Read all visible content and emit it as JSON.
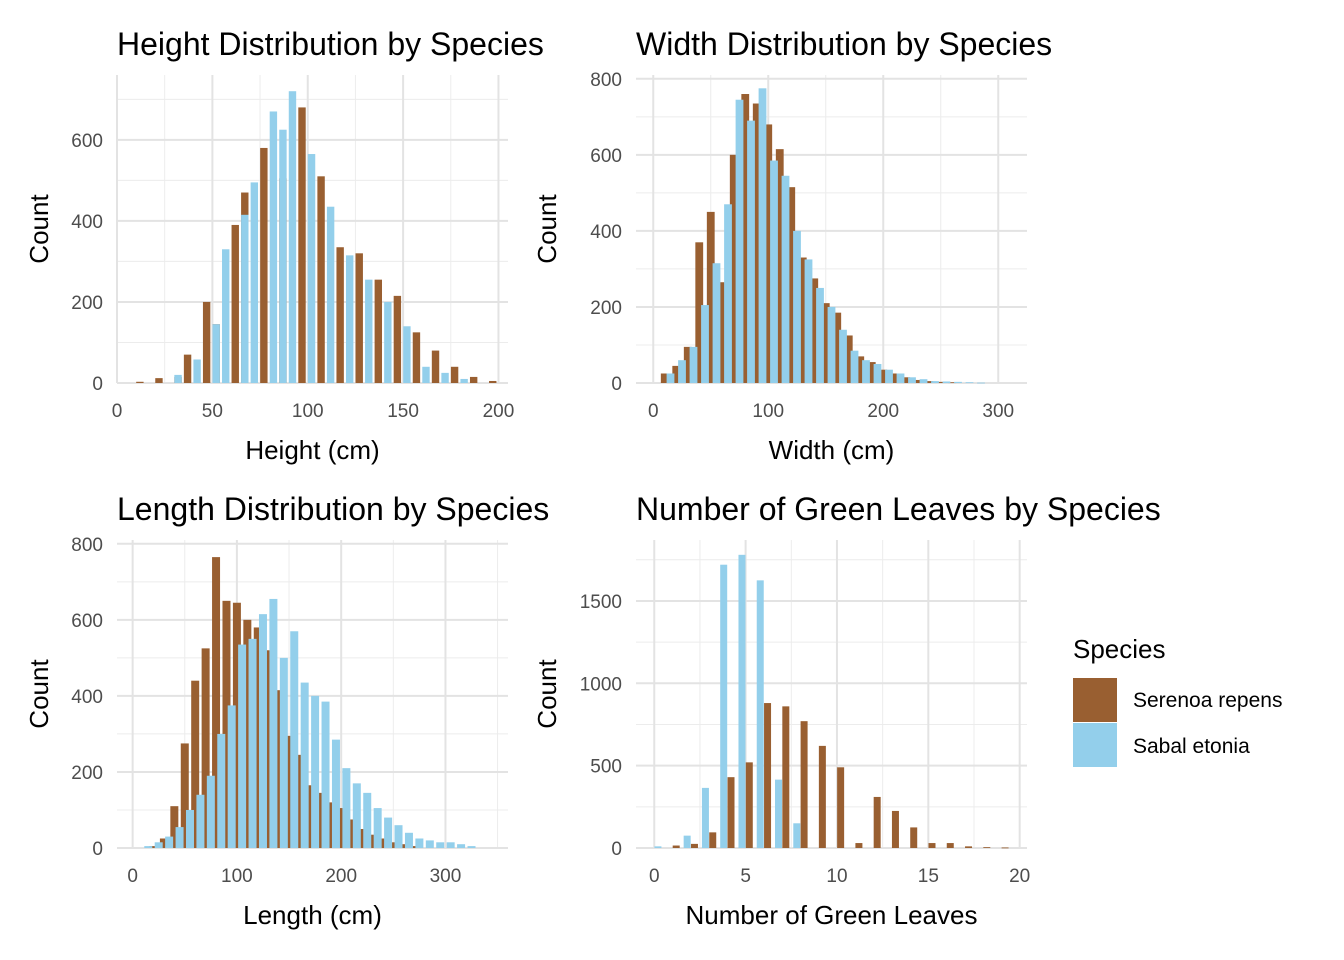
{
  "legend": {
    "title": "Species",
    "placement": "right",
    "items": [
      {
        "label": "Serenoa repens",
        "color": "#995f31"
      },
      {
        "label": "Sabal etonia",
        "color": "#93cfeb"
      }
    ]
  },
  "chart_data": [
    {
      "type": "bar",
      "title": "Height Distribution by Species",
      "xlabel": "Height (cm)",
      "ylabel": "Count",
      "xlim": [
        0,
        205
      ],
      "ylim": [
        0,
        760
      ],
      "xticks": [
        0,
        50,
        100,
        150,
        200
      ],
      "yticks": [
        0,
        200,
        400,
        600
      ],
      "grid": true,
      "series": [
        {
          "name": "Serenoa repens",
          "color": "#995f31",
          "x": [
            12,
            22,
            32,
            37,
            47,
            52,
            62,
            67,
            77,
            87,
            97,
            107,
            117,
            127,
            137,
            147,
            157,
            167,
            177,
            187,
            197
          ],
          "values": [
            3,
            12,
            15,
            70,
            200,
            145,
            390,
            470,
            580,
            505,
            680,
            510,
            335,
            320,
            255,
            215,
            125,
            80,
            40,
            15,
            5
          ]
        },
        {
          "name": "Sabal etonia",
          "color": "#93cfeb",
          "x": [
            32,
            42,
            52,
            57,
            67,
            72,
            82,
            87,
            92,
            102,
            112,
            122,
            132,
            142,
            152,
            162,
            172,
            182
          ],
          "values": [
            20,
            58,
            145,
            330,
            415,
            495,
            670,
            625,
            720,
            565,
            435,
            315,
            255,
            200,
            140,
            40,
            25,
            10
          ]
        }
      ]
    },
    {
      "type": "bar",
      "title": "Width Distribution by Species",
      "xlabel": "Width (cm)",
      "ylabel": "Count",
      "xlim": [
        -15,
        325
      ],
      "ylim": [
        0,
        810
      ],
      "xticks": [
        0,
        100,
        200,
        300
      ],
      "yticks": [
        0,
        200,
        400,
        600,
        800
      ],
      "grid": true,
      "series": [
        {
          "name": "Serenoa repens",
          "color": "#995f31",
          "x": [
            10,
            20,
            30,
            40,
            50,
            60,
            70,
            80,
            90,
            100,
            110,
            120,
            130,
            140,
            150,
            160,
            170,
            180,
            190,
            200,
            210,
            220,
            230,
            240,
            250,
            260
          ],
          "values": [
            25,
            45,
            95,
            370,
            450,
            265,
            600,
            760,
            735,
            680,
            615,
            515,
            330,
            275,
            210,
            185,
            125,
            70,
            55,
            35,
            25,
            15,
            8,
            5,
            3,
            2
          ]
        },
        {
          "name": "Sabal etonia",
          "color": "#93cfeb",
          "x": [
            15,
            25,
            35,
            45,
            55,
            65,
            75,
            85,
            95,
            105,
            115,
            125,
            135,
            145,
            155,
            165,
            175,
            185,
            195,
            205,
            215,
            225,
            235,
            245,
            255,
            265,
            275,
            285
          ],
          "values": [
            25,
            60,
            95,
            205,
            315,
            470,
            745,
            690,
            775,
            585,
            545,
            400,
            325,
            250,
            200,
            140,
            85,
            60,
            50,
            35,
            25,
            15,
            10,
            5,
            4,
            3,
            2,
            1
          ]
        }
      ]
    },
    {
      "type": "bar",
      "title": "Length Distribution by Species",
      "xlabel": "Length (cm)",
      "ylabel": "Count",
      "xlim": [
        -15,
        360
      ],
      "ylim": [
        0,
        810
      ],
      "xticks": [
        0,
        100,
        200,
        300
      ],
      "yticks": [
        0,
        200,
        400,
        600,
        800
      ],
      "grid": true,
      "series": [
        {
          "name": "Serenoa repens",
          "color": "#995f31",
          "x": [
            20,
            30,
            40,
            50,
            60,
            70,
            80,
            90,
            100,
            110,
            120,
            130,
            140,
            150,
            160,
            170,
            180,
            190,
            200,
            210,
            220,
            230,
            240,
            250,
            260,
            270
          ],
          "values": [
            5,
            25,
            110,
            275,
            440,
            525,
            765,
            650,
            645,
            600,
            580,
            520,
            415,
            295,
            245,
            165,
            145,
            120,
            105,
            75,
            50,
            35,
            25,
            15,
            10,
            5
          ]
        },
        {
          "name": "Sabal etonia",
          "color": "#93cfeb",
          "x": [
            15,
            25,
            35,
            45,
            55,
            65,
            75,
            85,
            95,
            105,
            115,
            125,
            135,
            145,
            155,
            165,
            175,
            185,
            195,
            205,
            215,
            225,
            235,
            245,
            255,
            265,
            275,
            285,
            295,
            305,
            315,
            325
          ],
          "values": [
            5,
            15,
            30,
            55,
            100,
            140,
            190,
            300,
            375,
            535,
            550,
            615,
            655,
            500,
            570,
            435,
            400,
            385,
            285,
            210,
            170,
            145,
            105,
            80,
            60,
            40,
            25,
            20,
            15,
            15,
            10,
            5
          ]
        }
      ]
    },
    {
      "type": "bar",
      "title": "Number of Green Leaves by Species",
      "xlabel": "Number of Green Leaves",
      "ylabel": "Count",
      "xlim": [
        -1,
        20.4
      ],
      "ylim": [
        0,
        1870
      ],
      "xticks": [
        0,
        5,
        10,
        15,
        20
      ],
      "yticks": [
        0,
        500,
        1000,
        1500
      ],
      "grid": true,
      "series": [
        {
          "name": "Serenoa repens",
          "color": "#995f31",
          "x": [
            1.2,
            2.2,
            3.2,
            4.2,
            5.2,
            6.2,
            7.2,
            8.2,
            9.2,
            10.2,
            11.2,
            12.2,
            13.2,
            14.2,
            15.2,
            16.2,
            17.2,
            18.2,
            19.2
          ],
          "values": [
            15,
            25,
            95,
            430,
            520,
            880,
            860,
            770,
            620,
            490,
            30,
            310,
            225,
            125,
            30,
            30,
            10,
            5,
            3
          ]
        },
        {
          "name": "Sabal etonia",
          "color": "#93cfeb",
          "x": [
            0.2,
            1.8,
            2.8,
            3.8,
            4.8,
            5.8,
            6.8,
            7.8
          ],
          "values": [
            10,
            75,
            365,
            1720,
            1780,
            1625,
            415,
            150
          ]
        }
      ]
    }
  ]
}
